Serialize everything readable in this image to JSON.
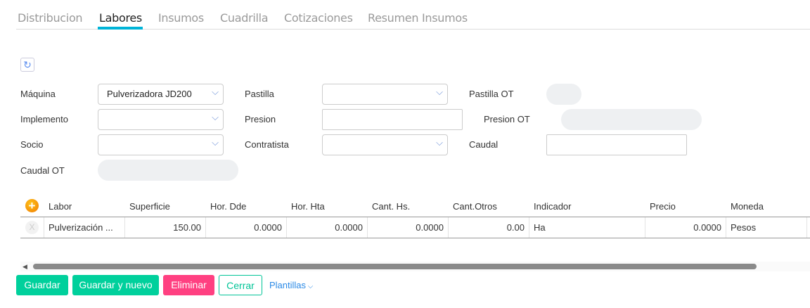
{
  "tabs": [
    {
      "label": "Distribucion"
    },
    {
      "label": "Labores"
    },
    {
      "label": "Insumos"
    },
    {
      "label": "Cuadrilla"
    },
    {
      "label": "Cotizaciones"
    },
    {
      "label": "Resumen Insumos"
    }
  ],
  "active_tab": "Labores",
  "form": {
    "maquina_label": "Máquina",
    "maquina_value": "Pulverizadora JD200",
    "implemento_label": "Implemento",
    "socio_label": "Socio",
    "caudal_ot_label": "Caudal OT",
    "pastilla_label": "Pastilla",
    "presion_label": "Presion",
    "contratista_label": "Contratista",
    "pastilla_ot_label": "Pastilla OT",
    "presion_ot_label": "Presion OT",
    "caudal_label": "Caudal"
  },
  "table": {
    "headers": [
      "Labor",
      "Superficie",
      "Hor. Dde",
      "Hor. Hta",
      "Cant. Hs.",
      "Cant.Otros",
      "Indicador",
      "Precio",
      "Moneda"
    ],
    "rows": [
      {
        "delete": "X",
        "cells": [
          "Pulverización ...",
          "150.00",
          "0.0000",
          "0.0000",
          "0.0000",
          "0.00",
          "Ha",
          "0.0000",
          "Pesos"
        ]
      }
    ]
  },
  "actions": {
    "guardar": "Guardar",
    "guardar_nuevo": "Guardar y nuevo",
    "eliminar": "Eliminar",
    "cerrar": "Cerrar",
    "plantillas": "Plantillas"
  },
  "colors": {
    "accent": "#00b4d8",
    "green": "#00d09c",
    "pink": "#ff4081",
    "link": "#2b8ae6"
  }
}
